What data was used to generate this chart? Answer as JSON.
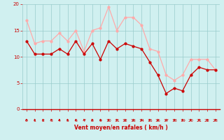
{
  "x": [
    0,
    1,
    2,
    3,
    4,
    5,
    6,
    7,
    8,
    9,
    10,
    11,
    12,
    13,
    14,
    15,
    16,
    17,
    18,
    19,
    20,
    21,
    22,
    23
  ],
  "wind_mean": [
    13,
    10.5,
    10.5,
    10.5,
    11.5,
    10.5,
    13,
    10.5,
    12.5,
    9.5,
    13,
    11.5,
    12.5,
    12,
    11.5,
    9,
    6.5,
    3,
    4,
    3.5,
    6.5,
    8,
    7.5,
    7.5
  ],
  "wind_gust": [
    17,
    12.5,
    13,
    13,
    14.5,
    13,
    15,
    11,
    15,
    15.5,
    19.5,
    15,
    17.5,
    17.5,
    16,
    11.5,
    11,
    6.5,
    5.5,
    6.5,
    9.5,
    9.5,
    9.5,
    7.5
  ],
  "mean_color": "#cc0000",
  "gust_color": "#ffaaaa",
  "bg_color": "#d0f0f0",
  "grid_color": "#99cccc",
  "axis_color": "#cc0000",
  "xlabel": "Vent moyen/en rafales ( km/h )",
  "ylim": [
    0,
    20
  ],
  "xlim_min": -0.5,
  "xlim_max": 23.5,
  "yticks": [
    0,
    5,
    10,
    15,
    20
  ],
  "xticks": [
    0,
    1,
    2,
    3,
    4,
    5,
    6,
    7,
    8,
    9,
    10,
    11,
    12,
    13,
    14,
    15,
    16,
    17,
    18,
    19,
    20,
    21,
    22,
    23
  ]
}
